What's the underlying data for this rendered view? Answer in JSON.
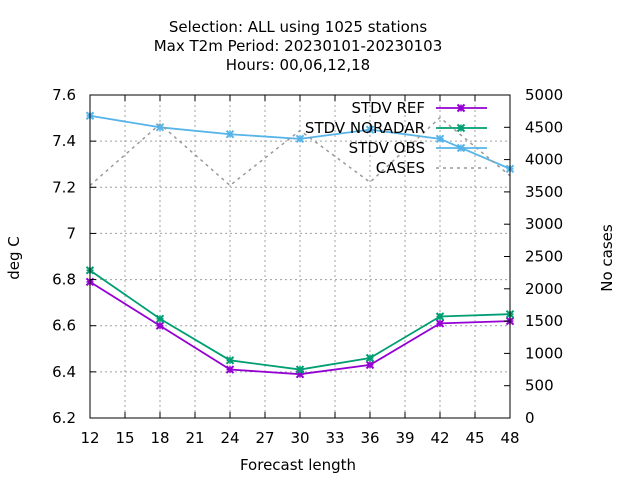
{
  "chart_data": {
    "type": "line",
    "title_lines": [
      "Selection: ALL using  1025 stations",
      "Max T2m   Period: 20230101-20230103",
      "Hours:  00,06,12,18"
    ],
    "xlabel": "Forecast length",
    "ylabel": "deg C",
    "y2label": "No cases",
    "xlim": [
      12,
      48
    ],
    "ylim": [
      6.2,
      7.6
    ],
    "y2lim": [
      0,
      5000
    ],
    "xticks": [
      "12",
      "15",
      "18",
      "21",
      "24",
      "27",
      "30",
      "33",
      "36",
      "39",
      "42",
      "45",
      "48"
    ],
    "yticks": [
      "6.2",
      "6.4",
      "6.6",
      "6.8",
      "7",
      "7.2",
      "7.4",
      "7.6"
    ],
    "y2ticks": [
      "0",
      "500",
      "1000",
      "1500",
      "2000",
      "2500",
      "3000",
      "3500",
      "4000",
      "4500",
      "5000"
    ],
    "grid": true,
    "legend_position": "top-right",
    "x": [
      12,
      18,
      24,
      30,
      36,
      42,
      48
    ],
    "series": [
      {
        "name": "STDV REF",
        "axis": "y",
        "color": "#9400d3",
        "marker": "x",
        "values": [
          6.79,
          6.6,
          6.41,
          6.39,
          6.43,
          6.61,
          6.62
        ]
      },
      {
        "name": "STDV NORADAR",
        "axis": "y",
        "color": "#009e73",
        "marker": "x",
        "values": [
          6.84,
          6.63,
          6.45,
          6.41,
          6.46,
          6.64,
          6.65
        ]
      },
      {
        "name": "STDV OBS",
        "axis": "y",
        "color": "#56b4e9",
        "marker": "x",
        "values": [
          7.51,
          7.46,
          7.43,
          7.41,
          7.45,
          7.41,
          7.28
        ]
      },
      {
        "name": "CASES",
        "axis": "y2",
        "color": "#999999",
        "marker": "none",
        "dashed": true,
        "values": [
          3600,
          4550,
          3600,
          4450,
          3650,
          4650,
          3750
        ]
      }
    ]
  }
}
